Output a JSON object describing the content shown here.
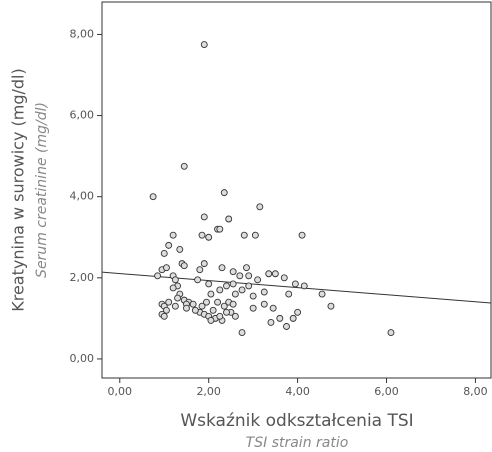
{
  "chart_data": {
    "type": "scatter",
    "xlabel": "Wskaźnik odkształcenia TSI",
    "xlabel_sub": "TSI strain ratio",
    "ylabel": "Kreatynina w surowicy (mg/dl)",
    "ylabel_sub": "Serum creatinine (mg/dl)",
    "x": [
      1.9,
      1.45,
      2.35,
      0.75,
      3.15,
      1.9,
      2.45,
      2.2,
      2.25,
      1.2,
      1.85,
      2.0,
      2.8,
      3.05,
      4.1,
      1.1,
      1.35,
      1.0,
      1.4,
      1.45,
      1.9,
      1.8,
      2.3,
      2.55,
      2.85,
      2.7,
      2.9,
      3.35,
      3.5,
      3.7,
      3.1,
      3.95,
      4.15,
      3.8,
      4.55,
      4.75,
      3.25,
      0.95,
      0.85,
      1.05,
      1.2,
      1.25,
      1.3,
      1.2,
      1.35,
      1.3,
      1.45,
      1.55,
      1.65,
      1.5,
      1.75,
      2.0,
      2.05,
      2.25,
      2.4,
      2.55,
      2.6,
      2.75,
      2.9,
      3.0,
      2.2,
      2.35,
      2.45,
      2.1,
      1.95,
      1.85,
      1.8,
      1.9,
      2.0,
      2.15,
      2.3,
      2.05,
      2.5,
      2.6,
      2.75,
      3.0,
      3.25,
      3.45,
      3.6,
      3.75,
      3.9,
      4.0,
      0.95,
      1.0,
      1.05,
      0.95,
      1.0,
      1.1,
      1.25,
      1.5,
      6.1,
      2.4,
      2.55,
      1.7,
      2.25,
      3.4
    ],
    "values": [
      7.75,
      4.75,
      4.1,
      4.0,
      3.75,
      3.5,
      3.45,
      3.2,
      3.2,
      3.05,
      3.05,
      3.0,
      3.05,
      3.05,
      3.05,
      2.8,
      2.7,
      2.6,
      2.35,
      2.3,
      2.35,
      2.2,
      2.25,
      2.15,
      2.25,
      2.05,
      2.05,
      2.1,
      2.1,
      2.0,
      1.95,
      1.85,
      1.8,
      1.6,
      1.6,
      1.3,
      1.65,
      2.2,
      2.05,
      2.25,
      2.05,
      1.95,
      1.8,
      1.75,
      1.6,
      1.5,
      1.45,
      1.4,
      1.35,
      1.35,
      1.95,
      1.85,
      1.6,
      1.7,
      1.8,
      1.85,
      1.6,
      1.7,
      1.8,
      1.55,
      1.4,
      1.3,
      1.4,
      1.2,
      1.4,
      1.3,
      1.15,
      1.1,
      1.05,
      1.0,
      0.95,
      0.95,
      1.15,
      1.05,
      0.65,
      1.25,
      1.35,
      1.25,
      1.0,
      0.8,
      1.0,
      1.15,
      1.35,
      1.3,
      1.2,
      1.1,
      1.05,
      1.4,
      1.3,
      1.25,
      0.65,
      1.15,
      1.35,
      1.2,
      1.05,
      0.9
    ],
    "fit_line": {
      "x": [
        -0.4,
        8.35
      ],
      "y": [
        2.14,
        1.38
      ]
    },
    "xlim": [
      -0.4,
      8.35
    ],
    "ylim": [
      -0.47,
      8.8
    ],
    "xticks": [
      {
        "value": 0,
        "label": "0,00"
      },
      {
        "value": 2,
        "label": "2,00"
      },
      {
        "value": 4,
        "label": "4,00"
      },
      {
        "value": 6,
        "label": "6,00"
      },
      {
        "value": 8,
        "label": "8,00"
      }
    ],
    "yticks": [
      {
        "value": 0,
        "label": "0,00"
      },
      {
        "value": 2,
        "label": "2,00"
      },
      {
        "value": 4,
        "label": "4,00"
      },
      {
        "value": 6,
        "label": "6,00"
      },
      {
        "value": 8,
        "label": "8,00"
      }
    ]
  }
}
